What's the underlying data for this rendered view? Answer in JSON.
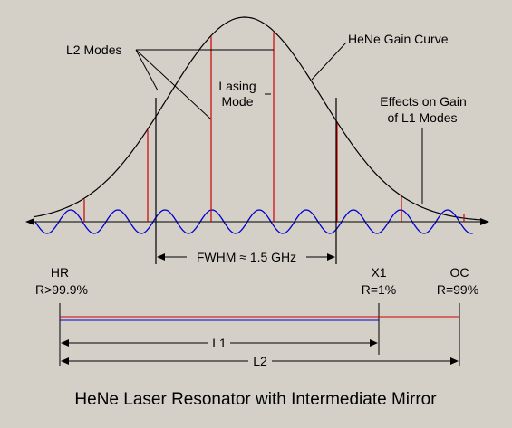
{
  "labels": {
    "l2_modes": "L2 Modes",
    "gain_curve": "HeNe Gain Curve",
    "lasing_line1": "Lasing",
    "lasing_line2": "Mode",
    "effects_line1": "Effects on Gain",
    "effects_line2": "of  L1 Modes",
    "fwhm": "FWHM ≈ 1.5 GHz",
    "hr_name": "HR",
    "hr_refl": "R>99.9%",
    "x1_name": "X1",
    "x1_refl": "R=1%",
    "oc_name": "OC",
    "oc_refl": "R=99%",
    "l1": "L1",
    "l2": "L2",
    "caption": "HeNe Laser Resonator with Intermediate Mirror"
  },
  "colors": {
    "background": "#d4d0c8",
    "l1_modes_wave": "#0000cc",
    "l2_mode_lines": "#cc0000",
    "ink": "#000000"
  }
}
